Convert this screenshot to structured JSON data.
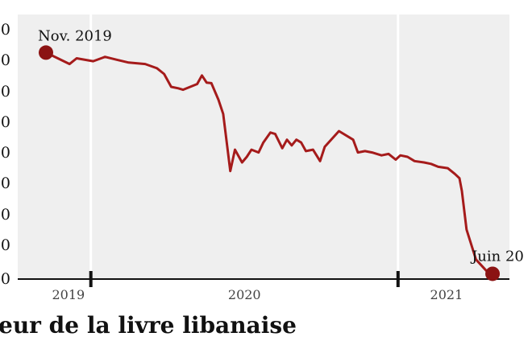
{
  "chart_data": {
    "type": "line",
    "title": "eur de la livre libanaise",
    "xlabel": "",
    "ylabel": "",
    "y_tick_labels": [
      "0",
      "0",
      "0",
      "0",
      "0",
      "00",
      "00",
      "00",
      "00"
    ],
    "x_tick_labels": [
      "2019",
      "2020",
      "2021"
    ],
    "grid": "vertical",
    "annotations": [
      {
        "text": "Nov. 2019",
        "x": 0.0,
        "y": 7.85
      },
      {
        "text": "Juin 20",
        "x": 18.9,
        "y": 0.1
      }
    ],
    "series": [
      {
        "color": "#a51b1b",
        "x": [
          0.0,
          0.5,
          1.0,
          1.3,
          2.0,
          2.5,
          3.0,
          3.5,
          4.2,
          4.7,
          5.0,
          5.3,
          5.6,
          5.8,
          6.4,
          6.6,
          6.8,
          7.0,
          7.3,
          7.5,
          7.8,
          8.0,
          8.3,
          8.5,
          8.7,
          9.0,
          9.2,
          9.5,
          9.7,
          10.0,
          10.2,
          10.4,
          10.6,
          10.8,
          11.0,
          11.3,
          11.6,
          11.8,
          12.4,
          13.0,
          13.2,
          13.5,
          13.8,
          14.2,
          14.5,
          14.8,
          15.0,
          15.3,
          15.6,
          16.0,
          16.3,
          16.6,
          17.0,
          17.3,
          17.5,
          17.6,
          17.8,
          18.2,
          18.7,
          18.9
        ],
        "values": [
          7.85,
          7.65,
          7.45,
          7.65,
          7.55,
          7.7,
          7.6,
          7.5,
          7.45,
          7.3,
          7.1,
          6.65,
          6.6,
          6.55,
          6.75,
          7.05,
          6.8,
          6.78,
          6.2,
          5.7,
          3.7,
          4.45,
          4.0,
          4.2,
          4.45,
          4.35,
          4.7,
          5.05,
          5.0,
          4.5,
          4.8,
          4.6,
          4.8,
          4.7,
          4.4,
          4.45,
          4.05,
          4.55,
          5.1,
          4.8,
          4.35,
          4.4,
          4.35,
          4.25,
          4.3,
          4.1,
          4.25,
          4.2,
          4.05,
          4.0,
          3.95,
          3.85,
          3.8,
          3.6,
          3.45,
          3.0,
          1.65,
          0.6,
          0.15,
          0.1
        ]
      }
    ],
    "year_bands": [
      {
        "label": "2019",
        "start": 0.0,
        "end": 1.9
      },
      {
        "label": "2020",
        "start": 1.9,
        "end": 14.9
      },
      {
        "label": "2021",
        "start": 14.9,
        "end": 19.0
      }
    ],
    "xlim": [
      0,
      19
    ],
    "ylim": [
      0,
      8.2
    ]
  }
}
